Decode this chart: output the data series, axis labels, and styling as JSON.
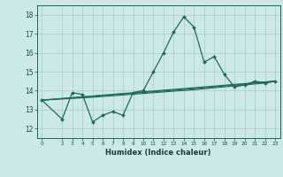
{
  "title": "",
  "xlabel": "Humidex (Indice chaleur)",
  "bg_color": "#cde8e8",
  "grid_color": "#aecece",
  "line_color": "#1a6b5a",
  "xlim": [
    -0.5,
    23.5
  ],
  "ylim": [
    11.5,
    18.5
  ],
  "yticks": [
    12,
    13,
    14,
    15,
    16,
    17,
    18
  ],
  "xticks": [
    0,
    2,
    3,
    4,
    5,
    6,
    7,
    8,
    9,
    10,
    11,
    12,
    13,
    14,
    15,
    16,
    17,
    18,
    19,
    20,
    21,
    22,
    23
  ],
  "line1_x": [
    0,
    2,
    3,
    4,
    5,
    6,
    7,
    8,
    9,
    10,
    11,
    12,
    13,
    14,
    15,
    16,
    17,
    18,
    19,
    20,
    21,
    22,
    23
  ],
  "line1_y": [
    13.5,
    12.5,
    13.9,
    13.8,
    12.35,
    12.7,
    12.9,
    12.7,
    13.9,
    14.0,
    15.0,
    16.0,
    17.1,
    17.9,
    17.35,
    15.5,
    15.8,
    14.85,
    14.2,
    14.3,
    14.5,
    14.4,
    14.5
  ],
  "line2_x": [
    0,
    23
  ],
  "line2_y": [
    13.5,
    14.5
  ],
  "line3_x": [
    0,
    5,
    10,
    15,
    18,
    19,
    20,
    21,
    22,
    23
  ],
  "line3_y": [
    13.5,
    13.7,
    13.9,
    14.1,
    14.25,
    14.3,
    14.35,
    14.4,
    14.45,
    14.5
  ],
  "line4_x": [
    0,
    5,
    10,
    15,
    18,
    19,
    20,
    21,
    22,
    23
  ],
  "line4_y": [
    13.5,
    13.65,
    13.85,
    14.05,
    14.2,
    14.25,
    14.3,
    14.35,
    14.4,
    14.5
  ]
}
